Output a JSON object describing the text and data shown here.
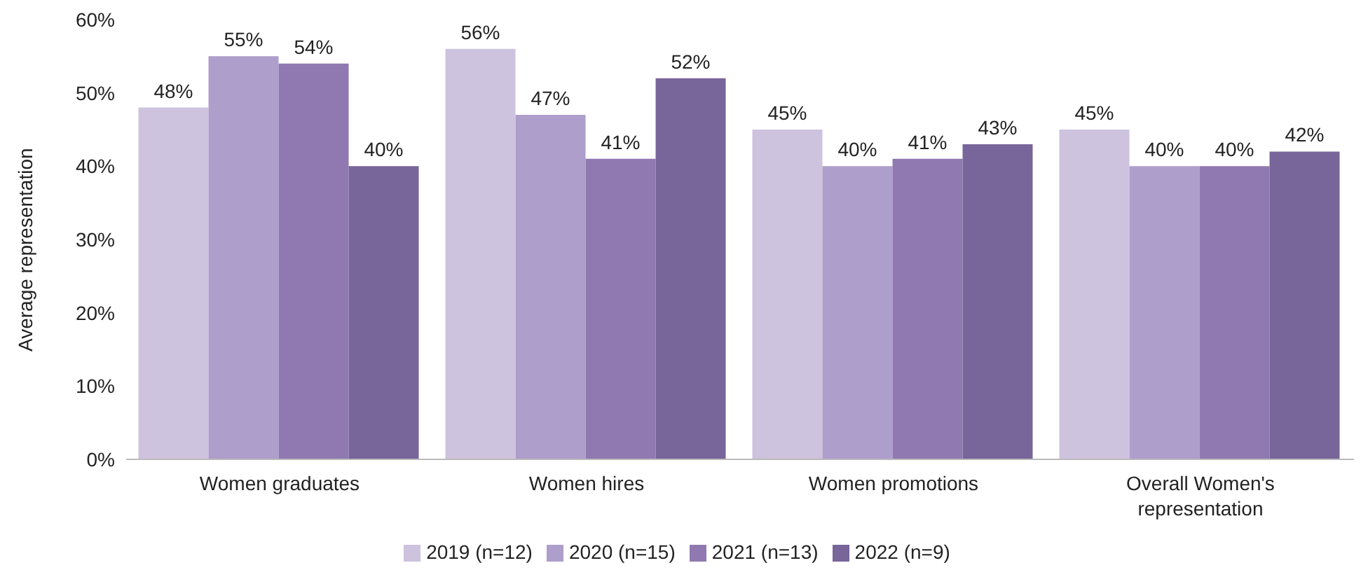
{
  "chart_data": {
    "type": "bar",
    "ylabel": "Average representation",
    "categories": [
      "Women graduates",
      "Women hires",
      "Women promotions",
      "Overall Women's representation"
    ],
    "series": [
      {
        "name": "2019 (n=12)",
        "color": "#cdc3de",
        "values": [
          48,
          56,
          45,
          45
        ],
        "value_labels": [
          "48%",
          "56%",
          "45%",
          "45%"
        ]
      },
      {
        "name": "2020 (n=15)",
        "color": "#ae9ecb",
        "values": [
          55,
          47,
          40,
          40
        ],
        "value_labels": [
          "55%",
          "47%",
          "40%",
          "40%"
        ]
      },
      {
        "name": "2021 (n=13)",
        "color": "#9079b0",
        "values": [
          54,
          41,
          41,
          40
        ],
        "value_labels": [
          "54%",
          "41%",
          "41%",
          "40%"
        ]
      },
      {
        "name": "2022 (n=9)",
        "color": "#78659a",
        "values": [
          40,
          52,
          43,
          42
        ],
        "value_labels": [
          "40%",
          "52%",
          "43%",
          "42%"
        ]
      }
    ],
    "ylim": [
      0,
      60
    ],
    "yticks": [
      {
        "value": 0,
        "label": "0%"
      },
      {
        "value": 10,
        "label": "10%"
      },
      {
        "value": 20,
        "label": "20%"
      },
      {
        "value": 30,
        "label": "30%"
      },
      {
        "value": 40,
        "label": "40%"
      },
      {
        "value": 50,
        "label": "50%"
      },
      {
        "value": 60,
        "label": "60%"
      }
    ],
    "grid": false,
    "legend": "bottom"
  }
}
